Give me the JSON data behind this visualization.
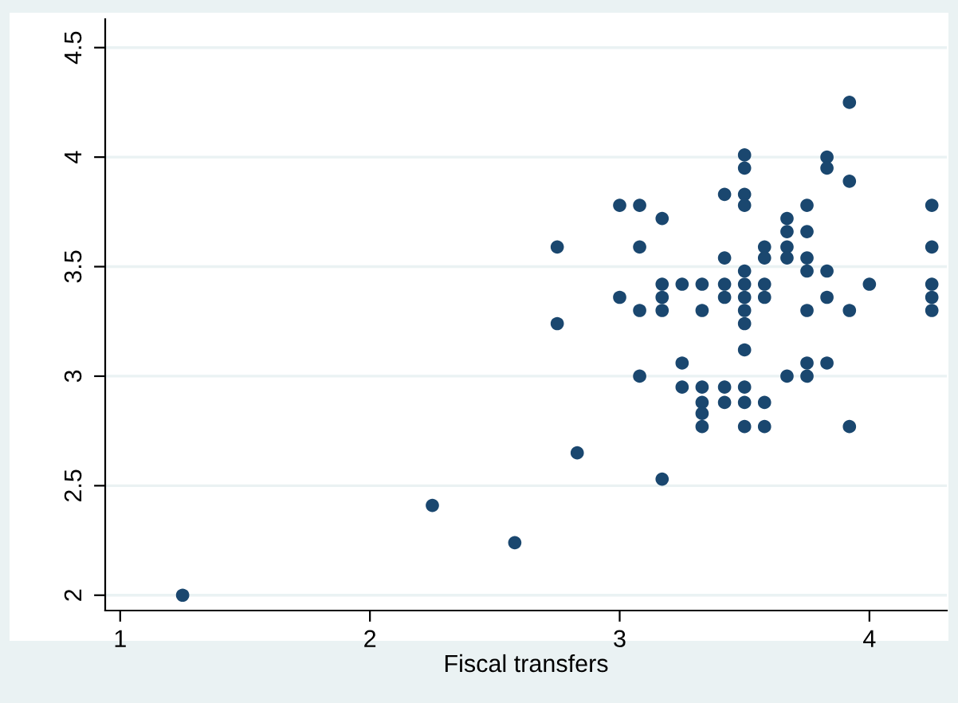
{
  "chart_data": {
    "type": "scatter",
    "xlabel": "Fiscal transfers",
    "xlim": [
      0.94,
      4.31
    ],
    "xticks": [
      1,
      2,
      3,
      4
    ],
    "ylim": [
      1.93,
      4.63
    ],
    "yticks": [
      2,
      2.5,
      3,
      3.5,
      4,
      4.5
    ],
    "grid": "y",
    "marker": "circle",
    "series": [
      {
        "color": "#1a476f",
        "x": [
          1.25,
          2.25,
          2.58,
          2.83,
          3.17,
          3.92,
          3.5,
          3.5,
          3.83,
          3.83,
          3.92,
          3.42,
          3.5,
          3.5,
          3.0,
          3.08,
          3.17,
          3.75,
          4.25,
          3.67,
          3.67,
          3.75,
          2.75,
          3.08,
          3.58,
          3.67,
          4.25,
          3.42,
          3.58,
          3.67,
          3.75,
          3.5,
          3.75,
          3.83,
          3.17,
          3.25,
          3.33,
          3.42,
          3.5,
          3.58,
          4.0,
          4.25,
          3.0,
          3.17,
          3.42,
          3.5,
          3.58,
          3.83,
          4.25,
          3.08,
          3.17,
          3.33,
          3.5,
          3.75,
          3.92,
          4.25,
          2.75,
          3.5,
          3.5,
          3.25,
          3.08,
          3.67,
          3.75,
          3.75,
          3.83,
          3.25,
          3.33,
          3.42,
          3.5,
          3.33,
          3.42,
          3.5,
          3.58,
          3.33,
          3.33,
          3.5,
          3.58,
          3.92
        ],
        "values": [
          2.0,
          2.41,
          2.24,
          2.65,
          2.53,
          4.25,
          4.01,
          3.95,
          4.0,
          3.95,
          3.89,
          3.83,
          3.83,
          3.78,
          3.78,
          3.78,
          3.72,
          3.78,
          3.78,
          3.72,
          3.66,
          3.66,
          3.59,
          3.59,
          3.59,
          3.59,
          3.59,
          3.54,
          3.54,
          3.54,
          3.54,
          3.48,
          3.48,
          3.48,
          3.42,
          3.42,
          3.42,
          3.42,
          3.42,
          3.42,
          3.42,
          3.42,
          3.36,
          3.36,
          3.36,
          3.36,
          3.36,
          3.36,
          3.36,
          3.3,
          3.3,
          3.3,
          3.3,
          3.3,
          3.3,
          3.3,
          3.24,
          3.24,
          3.12,
          3.06,
          3.0,
          3.0,
          3.06,
          3.0,
          3.06,
          2.95,
          2.95,
          2.95,
          2.95,
          2.88,
          2.88,
          2.88,
          2.88,
          2.83,
          2.77,
          2.77,
          2.77,
          2.77
        ]
      }
    ]
  }
}
